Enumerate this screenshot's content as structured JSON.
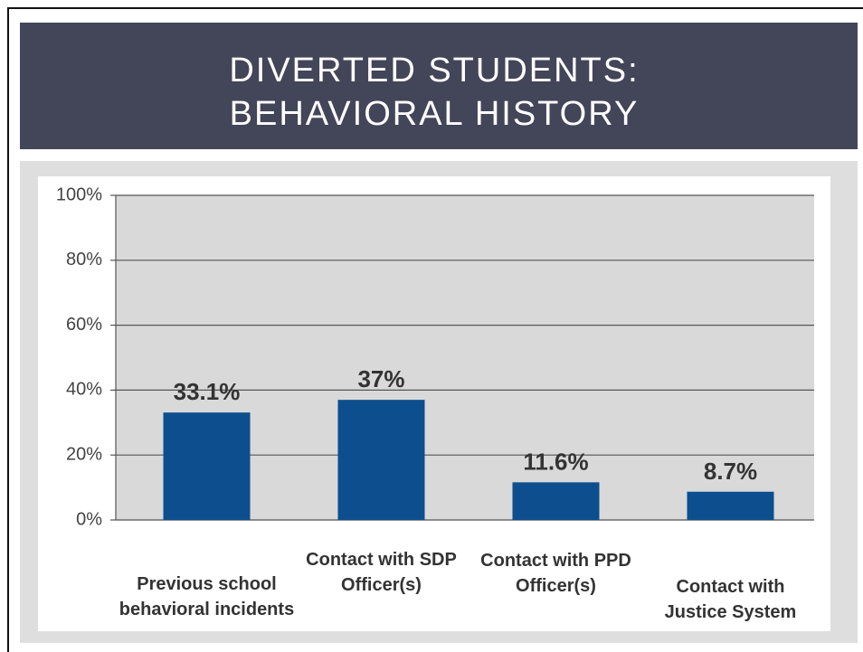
{
  "title": [
    "DIVERTED STUDENTS:",
    "BEHAVIORAL HISTORY"
  ],
  "chart_data": {
    "type": "bar",
    "categories": [
      "Previous school behavioral incidents",
      "Contact with SDP Officer(s)",
      "Contact with PPD Officer(s)",
      "Contact with Justice System"
    ],
    "values": [
      33.1,
      37,
      11.6,
      8.7
    ],
    "value_labels": [
      "33.1%",
      "37%",
      "11.6%",
      "8.7%"
    ],
    "color": "#0d4f8e",
    "ylim": [
      0,
      100
    ],
    "yticks": [
      {
        "value": 0,
        "label": "0%"
      },
      {
        "value": 20,
        "label": "20%"
      },
      {
        "value": 40,
        "label": "40%"
      },
      {
        "value": 60,
        "label": "60%"
      },
      {
        "value": 80,
        "label": "80%"
      },
      {
        "value": 100,
        "label": "100%"
      }
    ],
    "grid": true
  }
}
